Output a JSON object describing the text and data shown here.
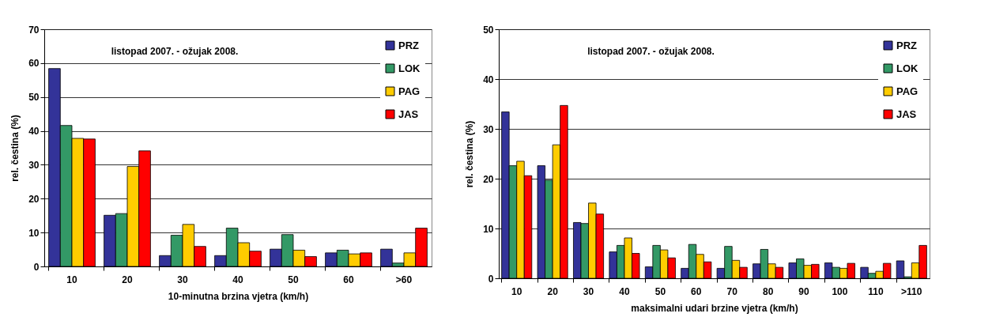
{
  "chart_data": [
    {
      "type": "bar",
      "title": "listopad 2007. - ožujak 2008.",
      "xlabel": "10-minutna brzina vjetra (km/h)",
      "ylabel": "rel. čestina (%)",
      "categories": [
        "10",
        "20",
        "30",
        "40",
        "50",
        "60",
        ">60"
      ],
      "series": [
        {
          "name": "PRZ",
          "color": "#333399",
          "values": [
            58.4,
            15.1,
            3.2,
            3.2,
            5.1,
            4.0,
            5.1
          ]
        },
        {
          "name": "LOK",
          "color": "#339966",
          "values": [
            41.6,
            15.6,
            9.2,
            11.3,
            9.4,
            4.8,
            1.0
          ]
        },
        {
          "name": "PAG",
          "color": "#ffcc00",
          "values": [
            37.8,
            29.5,
            12.4,
            7.0,
            4.8,
            3.7,
            4.0
          ]
        },
        {
          "name": "JAS",
          "color": "#ff0000",
          "values": [
            37.6,
            34.1,
            5.9,
            4.5,
            2.9,
            4.0,
            11.3
          ]
        }
      ],
      "ylim": [
        0,
        70
      ],
      "yticks": [
        0,
        10,
        20,
        30,
        40,
        50,
        60,
        70
      ],
      "grid": "y",
      "legend": "top right"
    },
    {
      "type": "bar",
      "title": "listopad 2007. - ožujak 2008.",
      "xlabel": "maksimalni udari brzine vjetra (km/h)",
      "ylabel": "rel. čestina (%)",
      "categories": [
        "10",
        "20",
        "30",
        "40",
        "50",
        "60",
        "70",
        "80",
        "90",
        "100",
        "110",
        ">110"
      ],
      "series": [
        {
          "name": "PRZ",
          "color": "#333399",
          "values": [
            33.4,
            22.6,
            11.2,
            5.3,
            2.3,
            2.0,
            2.0,
            2.9,
            3.1,
            3.1,
            2.2,
            3.5
          ]
        },
        {
          "name": "LOK",
          "color": "#339966",
          "values": [
            22.6,
            19.7,
            11.0,
            6.6,
            6.6,
            6.8,
            6.4,
            5.8,
            3.9,
            2.2,
            1.0,
            0.3
          ]
        },
        {
          "name": "PAG",
          "color": "#ffcc00",
          "values": [
            23.5,
            26.8,
            15.1,
            8.1,
            5.7,
            4.8,
            3.6,
            2.9,
            2.6,
            2.0,
            1.4,
            3.1
          ]
        },
        {
          "name": "JAS",
          "color": "#ff0000",
          "values": [
            20.6,
            34.7,
            12.9,
            5.0,
            4.1,
            3.3,
            2.2,
            2.2,
            2.8,
            3.0,
            3.0,
            6.6
          ]
        }
      ],
      "ylim": [
        0,
        50
      ],
      "yticks": [
        0,
        10,
        20,
        30,
        40,
        50
      ],
      "grid": "y",
      "legend": "top right"
    }
  ]
}
